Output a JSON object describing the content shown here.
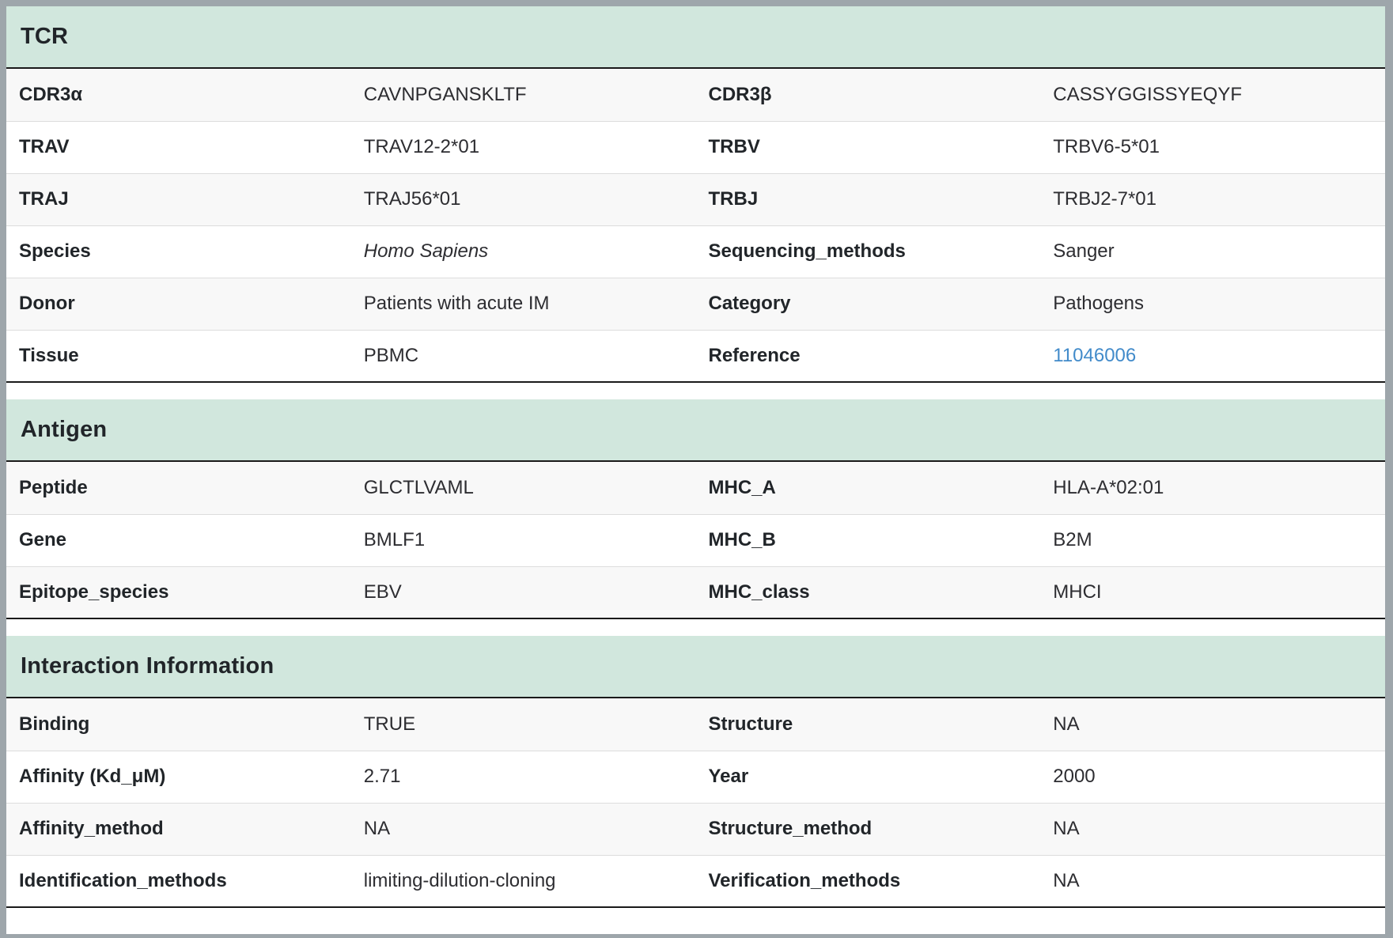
{
  "colors": {
    "section_header_bg": "#d1e7dd",
    "window_frame": "#9ea6ab",
    "row_stripe": "#f8f8f8",
    "row_separator": "#dddddd",
    "table_dark_border": "#1a1a1a",
    "label_text": "#212529",
    "value_text": "#2d2d31",
    "link_text": "#428bca"
  },
  "sections": [
    {
      "key": "tcr",
      "title": "TCR",
      "rows": [
        {
          "cells": [
            {
              "key": "cdr3-alpha",
              "label": "CDR3α",
              "value": "CAVNPGANSKLTF"
            },
            {
              "key": "cdr3-beta",
              "label": "CDR3β",
              "value": "CASSYGGISSYEQYF"
            }
          ]
        },
        {
          "cells": [
            {
              "key": "trav",
              "label": "TRAV",
              "value": "TRAV12-2*01"
            },
            {
              "key": "trbv",
              "label": "TRBV",
              "value": "TRBV6-5*01"
            }
          ]
        },
        {
          "cells": [
            {
              "key": "traj",
              "label": "TRAJ",
              "value": "TRAJ56*01"
            },
            {
              "key": "trbj",
              "label": "TRBJ",
              "value": "TRBJ2-7*01"
            }
          ]
        },
        {
          "cells": [
            {
              "key": "species",
              "label": "Species",
              "value": "Homo Sapiens",
              "italic": true
            },
            {
              "key": "sequencing-methods",
              "label": "Sequencing_methods",
              "value": "Sanger"
            }
          ]
        },
        {
          "cells": [
            {
              "key": "donor",
              "label": "Donor",
              "value": "Patients with acute IM"
            },
            {
              "key": "category",
              "label": "Category",
              "value": "Pathogens"
            }
          ]
        },
        {
          "cells": [
            {
              "key": "tissue",
              "label": "Tissue",
              "value": "PBMC"
            },
            {
              "key": "reference",
              "label": "Reference",
              "value": "11046006",
              "link": true
            }
          ]
        }
      ]
    },
    {
      "key": "antigen",
      "title": "Antigen",
      "rows": [
        {
          "cells": [
            {
              "key": "peptide",
              "label": "Peptide",
              "value": "GLCTLVAML"
            },
            {
              "key": "mhc-a",
              "label": "MHC_A",
              "value": "HLA-A*02:01"
            }
          ]
        },
        {
          "cells": [
            {
              "key": "gene",
              "label": "Gene",
              "value": "BMLF1"
            },
            {
              "key": "mhc-b",
              "label": "MHC_B",
              "value": "B2M"
            }
          ]
        },
        {
          "cells": [
            {
              "key": "epitope-species",
              "label": "Epitope_species",
              "value": "EBV"
            },
            {
              "key": "mhc-class",
              "label": "MHC_class",
              "value": "MHCI"
            }
          ]
        }
      ]
    },
    {
      "key": "interaction-information",
      "title": "Interaction Information",
      "rows": [
        {
          "cells": [
            {
              "key": "binding",
              "label": "Binding",
              "value": "TRUE"
            },
            {
              "key": "structure",
              "label": "Structure",
              "value": "NA"
            }
          ]
        },
        {
          "cells": [
            {
              "key": "affinity-kd-um",
              "label": "Affinity (Kd_μM)",
              "value": "2.71"
            },
            {
              "key": "year",
              "label": "Year",
              "value": "2000"
            }
          ]
        },
        {
          "cells": [
            {
              "key": "affinity-method",
              "label": "Affinity_method",
              "value": "NA"
            },
            {
              "key": "structure-method",
              "label": "Structure_method",
              "value": "NA"
            }
          ]
        },
        {
          "cells": [
            {
              "key": "identification-methods",
              "label": "Identification_methods",
              "value": "limiting-dilution-cloning"
            },
            {
              "key": "verification-methods",
              "label": "Verification_methods",
              "value": "NA"
            }
          ]
        }
      ]
    }
  ]
}
